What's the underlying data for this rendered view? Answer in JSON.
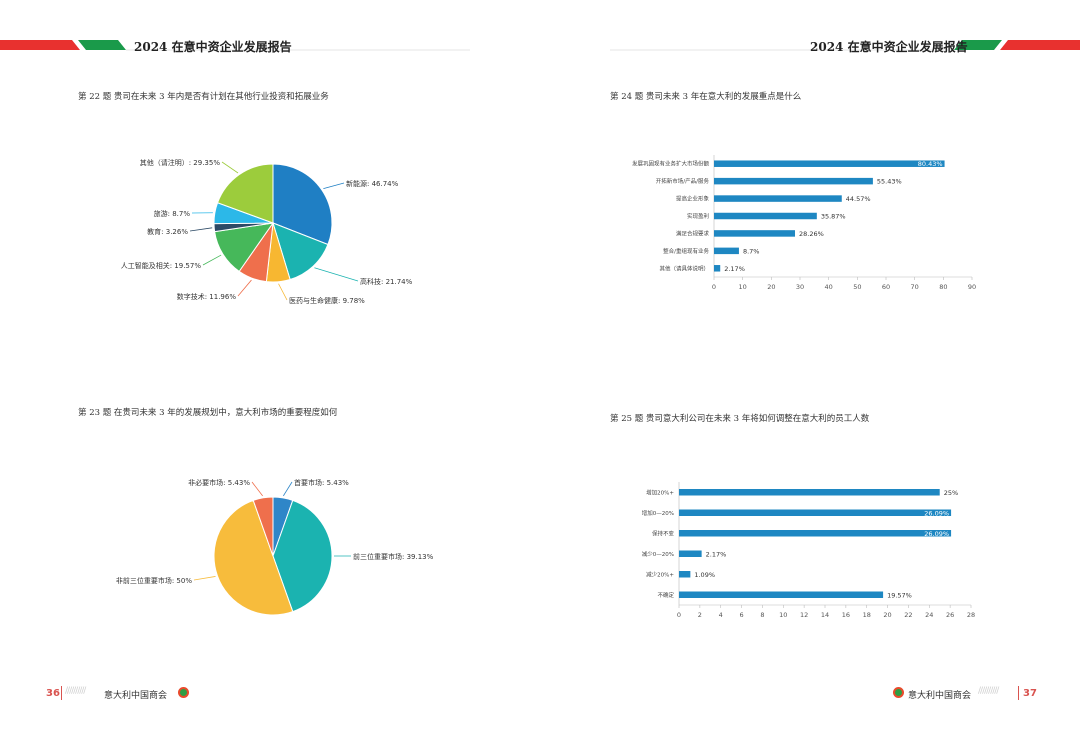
{
  "header": {
    "left_title": "2024 在意中资企业发展报告",
    "right_title": "2024 在意中资企业发展报告",
    "accent_red": "#e8312f",
    "accent_green": "#1a9a4a"
  },
  "footer": {
    "left_page": "36",
    "right_page": "37",
    "left_org": "意大利中国商会",
    "right_org": "意大利中国商会",
    "slashes": "//////////"
  },
  "questions": {
    "q22": "第 22 题   贵司在未来 3 年内是否有计划在其他行业投资和拓展业务",
    "q23": "第 23 题   在贵司未来 3 年的发展规划中，意大利市场的重要程度如何",
    "q24": "第 24 题   贵司未来 3 年在意大利的发展重点是什么",
    "q25": "第 25 题   贵司意大利公司在未来 3 年将如何调整在意大利的员工人数"
  },
  "chart_data": [
    {
      "id": "q22",
      "type": "pie",
      "slices": [
        {
          "label": "新能源: 46.74%",
          "value": 46.74,
          "color": "#1f7fc4"
        },
        {
          "label": "高科技: 21.74%",
          "value": 21.74,
          "color": "#1bb3b0"
        },
        {
          "label": "医药与生命健康: 9.78%",
          "value": 9.78,
          "color": "#f7b731"
        },
        {
          "label": "数字技术: 11.96%",
          "value": 11.96,
          "color": "#ef6f4c"
        },
        {
          "label": "人工智能及相关: 19.57%",
          "value": 19.57,
          "color": "#46b85a"
        },
        {
          "label": "教育: 3.26%",
          "value": 3.26,
          "color": "#2d4a66"
        },
        {
          "label": "旅游: 8.7%",
          "value": 8.7,
          "color": "#2cb8e8"
        },
        {
          "label": "其他（请注明）: 29.35%",
          "value": 29.35,
          "color": "#9ccc3c"
        }
      ]
    },
    {
      "id": "q23",
      "type": "pie",
      "slices": [
        {
          "label": "首要市场: 5.43%",
          "value": 5.43,
          "color": "#2f86c8"
        },
        {
          "label": "前三位重要市场: 39.13%",
          "value": 39.13,
          "color": "#1bb3b0"
        },
        {
          "label": "非前三位重要市场: 50%",
          "value": 50,
          "color": "#f7bc3c"
        },
        {
          "label": "非必要市场: 5.43%",
          "value": 5.43,
          "color": "#ef6f4c"
        }
      ]
    },
    {
      "id": "q24",
      "type": "bar",
      "orientation": "horizontal",
      "categories": [
        "发展巩固现有业务扩大市场份额",
        "开拓新市场/产品/服务",
        "提高企业形象",
        "实现盈利",
        "满足合规要求",
        "整合/重组现有业务",
        "其他（请具体说明）"
      ],
      "values": [
        80.43,
        55.43,
        44.57,
        35.87,
        28.26,
        8.7,
        2.17
      ],
      "data_labels": [
        "80.43%",
        "55.43%",
        "44.57%",
        "35.87%",
        "28.26%",
        "8.7%",
        "2.17%"
      ],
      "xlim": [
        0,
        90
      ],
      "xticks": [
        "0",
        "10",
        "20",
        "30",
        "40",
        "50",
        "60",
        "70",
        "80",
        "90"
      ],
      "color": "#1e87c2"
    },
    {
      "id": "q25",
      "type": "bar",
      "orientation": "horizontal",
      "categories": [
        "增加20%+",
        "增加0—20%",
        "保持不变",
        "减少0—20%",
        "减少20%+",
        "不确定"
      ],
      "values": [
        25,
        26.09,
        26.09,
        2.17,
        1.09,
        19.57
      ],
      "data_labels": [
        "25%",
        "26.09%",
        "26.09%",
        "2.17%",
        "1.09%",
        "19.57%"
      ],
      "xlim": [
        0,
        28
      ],
      "xticks": [
        "0",
        "2",
        "4",
        "6",
        "8",
        "10",
        "12",
        "14",
        "16",
        "18",
        "20",
        "22",
        "24",
        "26",
        "28"
      ],
      "color": "#1e87c2"
    }
  ]
}
